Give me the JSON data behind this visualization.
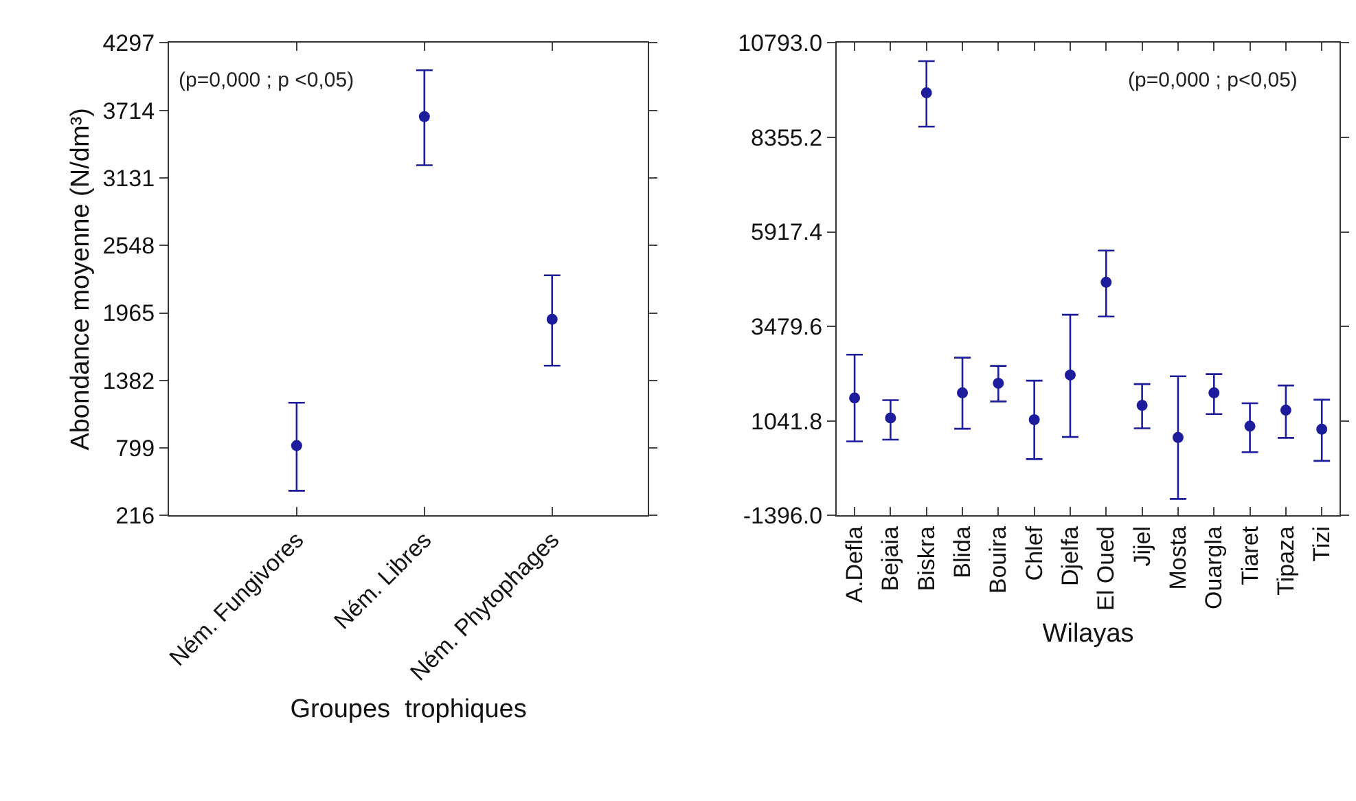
{
  "chart_data": [
    {
      "type": "scatter",
      "ylabel": "Abondance moyenne (N/dm³)",
      "xlabel": "Groupes  trophiques",
      "categories": [
        "Ném. Fungivores",
        "Ném. Libres",
        "Ném. Phytophages"
      ],
      "series": [
        {
          "color": "#1c1c9c",
          "values": [
            820,
            3660,
            1910
          ],
          "errors": [
            [
              430,
              1190
            ],
            [
              3240,
              4060
            ],
            [
              1510,
              2290
            ]
          ]
        }
      ],
      "ylim": [
        216,
        4297
      ],
      "yticks": [
        216,
        799,
        1382,
        1965,
        2548,
        3131,
        3714,
        4297
      ],
      "marker": "circle",
      "annotations": [
        "(p=0,000 ; p <0,05)"
      ]
    },
    {
      "type": "scatter",
      "xlabel": "Wilayas",
      "categories": [
        "A.Defla",
        "Bejaia",
        "Biskra",
        "Blida",
        "Bouira",
        "Chlef",
        "Djelfa",
        "El Oued",
        "Jijel",
        "Mosta",
        "Ouargla",
        "Tiaret",
        "Tipaza",
        "Tizi"
      ],
      "series": [
        {
          "color": "#1c1c9c",
          "values": [
            1634,
            1120,
            9505,
            1768,
            2014,
            1075,
            2227,
            4620,
            1444,
            617,
            1768,
            908,
            1321,
            829
          ],
          "errors": [
            [
              516,
              2752
            ],
            [
              561,
              1578
            ],
            [
              8633,
              10321
            ],
            [
              841,
              2674
            ],
            [
              1545,
              2462
            ],
            [
              58,
              2082
            ],
            [
              628,
              3781
            ],
            [
              3736,
              5436
            ],
            [
              852,
              1992
            ],
            [
              -970,
              2193
            ],
            [
              1221,
              2249
            ],
            [
              237,
              1500
            ],
            [
              606,
              1958
            ],
            [
              13,
              1590
            ]
          ]
        }
      ],
      "ylim": [
        -1396.0,
        10793.0
      ],
      "yticks": [
        {
          "value": -1396.0,
          "label": "-1396.0"
        },
        {
          "value": 1041.8,
          "label": "1041.8"
        },
        {
          "value": 3479.6,
          "label": "3479.6"
        },
        {
          "value": 5917.4,
          "label": "5917.4"
        },
        {
          "value": 8355.2,
          "label": "8355.2"
        },
        {
          "value": 10793.0,
          "label": "10793.0"
        }
      ],
      "marker": "circle",
      "annotations": [
        "(p=0,000 ; p<0,05)"
      ]
    }
  ]
}
